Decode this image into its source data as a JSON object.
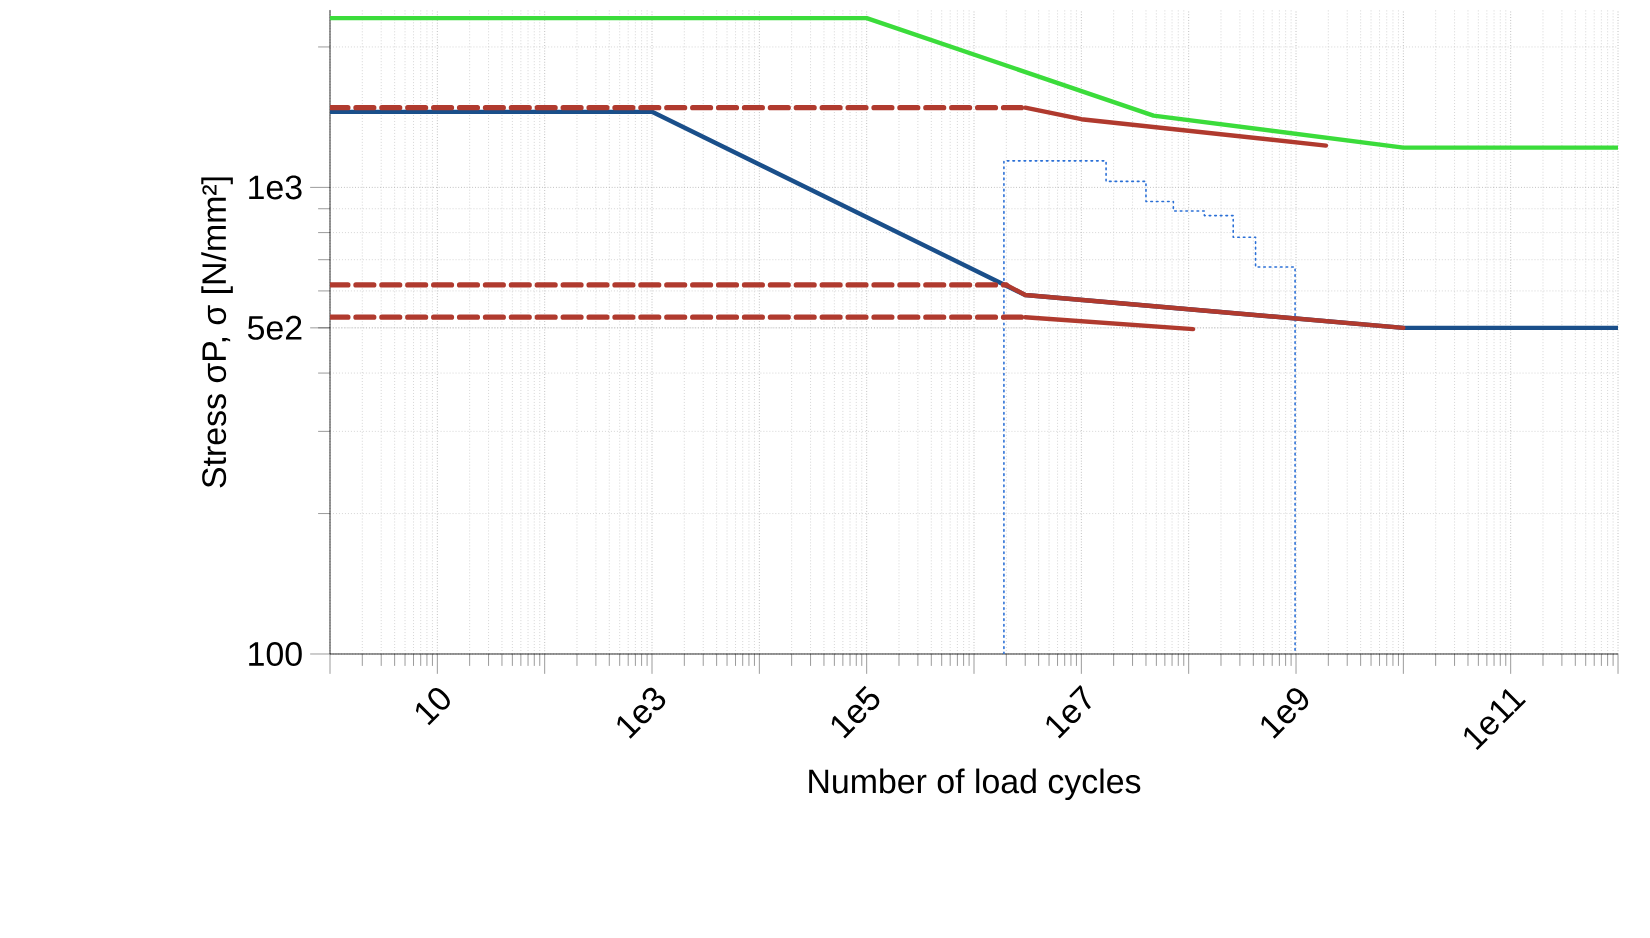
{
  "chart_data": {
    "type": "line",
    "xlabel": "Number of load cycles",
    "ylabel": "Stress σP, σ [N/mm²]",
    "log": "xy",
    "grid": true,
    "marker": "none",
    "xlim": [
      1,
      1000000000000
    ],
    "ylim": [
      100,
      2400
    ],
    "xticks": [
      {
        "value": 1,
        "label": null
      },
      {
        "value": 10,
        "label": "10"
      },
      {
        "value": 100,
        "label": null
      },
      {
        "value": 1000,
        "label": "1e3"
      },
      {
        "value": 10000,
        "label": null
      },
      {
        "value": 100000,
        "label": "1e5"
      },
      {
        "value": 1000000,
        "label": null
      },
      {
        "value": 10000000,
        "label": "1e7"
      },
      {
        "value": 100000000,
        "label": null
      },
      {
        "value": 1000000000,
        "label": "1e9"
      },
      {
        "value": 10000000000,
        "label": null
      },
      {
        "value": 100000000000,
        "label": "1e11"
      },
      {
        "value": 1000000000000,
        "label": null
      }
    ],
    "yticks": [
      100,
      {
        "value": 500,
        "label": "5e2"
      },
      {
        "value": 1000,
        "label": "1e3"
      }
    ],
    "series": [
      {
        "color": "#3bdc3b",
        "line_style": "solid",
        "x": [
          1,
          100000,
          47000000,
          10000000000,
          1000000000000
        ],
        "values": [
          2306,
          2306,
          1425,
          1217,
          1217
        ]
      },
      {
        "color": "#1a4f8a",
        "line_style": "solid",
        "x": [
          1,
          1000,
          3000000,
          10000000000,
          1000000000000
        ],
        "values": [
          1452,
          1452,
          588,
          500,
          500
        ]
      },
      {
        "color": "#2a6fd6",
        "line_style": "dotted",
        "x": [
          1900000,
          1900000,
          17000000,
          17000000,
          40000000,
          40000000,
          72000000,
          72000000,
          140000000,
          140000000,
          260000000,
          260000000,
          420000000,
          420000000,
          980000000,
          980000000
        ],
        "values": [
          100,
          1140,
          1140,
          1030,
          1030,
          933,
          933,
          890,
          890,
          870,
          870,
          782,
          782,
          675,
          675,
          100
        ]
      },
      {
        "color": "#b03a2e",
        "line_style": "dashed",
        "x": [
          1,
          3000000
        ],
        "values": [
          1482,
          1482
        ]
      },
      {
        "color": "#b03a2e",
        "line_style": "solid",
        "x": [
          3000000,
          10000000,
          1900000000
        ],
        "values": [
          1482,
          1400,
          1229
        ]
      },
      {
        "color": "#b03a2e",
        "line_style": "dashed",
        "x": [
          1,
          2000000
        ],
        "values": [
          618,
          618
        ]
      },
      {
        "color": "#b03a2e",
        "line_style": "solid",
        "x": [
          2000000,
          3000000,
          10000000000
        ],
        "values": [
          618,
          588,
          500
        ]
      },
      {
        "color": "#b03a2e",
        "line_style": "dashed",
        "x": [
          1,
          3000000
        ],
        "values": [
          527,
          527
        ]
      },
      {
        "color": "#b03a2e",
        "line_style": "solid",
        "x": [
          3000000,
          110000000
        ],
        "values": [
          527,
          497
        ]
      }
    ]
  }
}
